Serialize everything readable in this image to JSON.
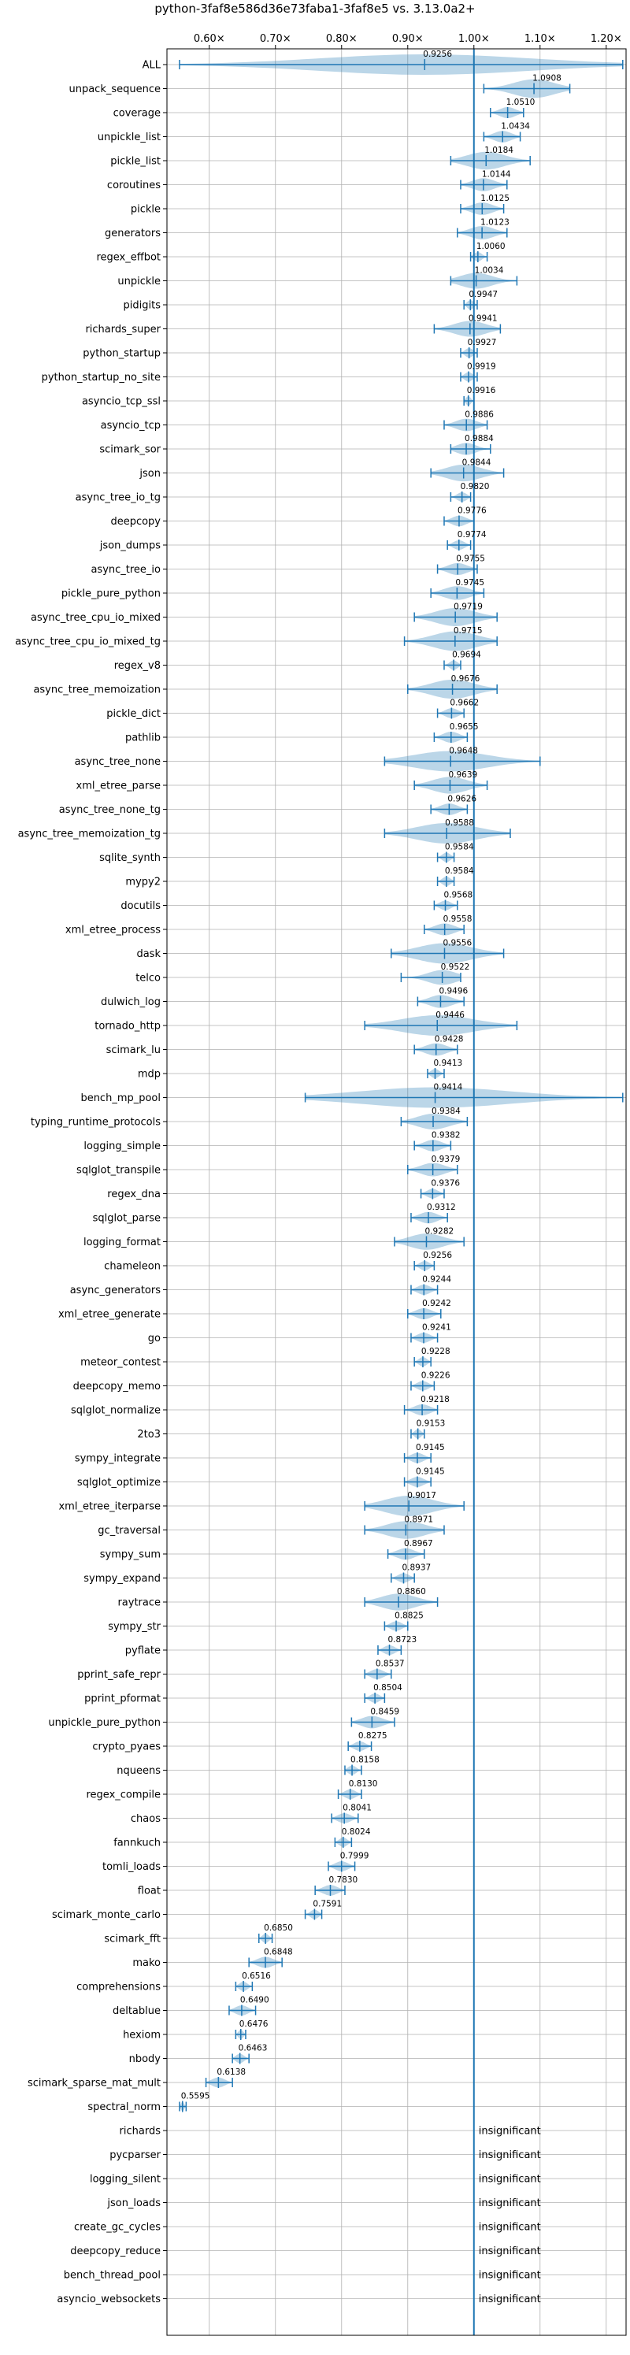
{
  "chart_data": {
    "type": "violin",
    "title": "python-3faf8e586d36e73faba1-3faf8e5 vs. 3.13.0a2+",
    "xlabel": "",
    "ylabel": "",
    "x_ticks": [
      0.6,
      0.7,
      0.8,
      0.9,
      1.0,
      1.1,
      1.2
    ],
    "x_tick_labels": [
      "0.60×",
      "0.70×",
      "0.80×",
      "0.90×",
      "1.00×",
      "1.10×",
      "1.20×"
    ],
    "xlim": [
      0.536,
      1.23
    ],
    "reference_line": 1.0,
    "grid": true,
    "significant": [
      {
        "name": "ALL",
        "value": 0.9256,
        "label": "0.9256",
        "min": 0.555,
        "max": 1.225
      },
      {
        "name": "unpack_sequence",
        "value": 1.0908,
        "label": "1.0908",
        "min": 1.015,
        "max": 1.145
      },
      {
        "name": "coverage",
        "value": 1.051,
        "label": "1.0510",
        "min": 1.025,
        "max": 1.075
      },
      {
        "name": "unpickle_list",
        "value": 1.0434,
        "label": "1.0434",
        "min": 1.015,
        "max": 1.07
      },
      {
        "name": "pickle_list",
        "value": 1.0184,
        "label": "1.0184",
        "min": 0.965,
        "max": 1.085
      },
      {
        "name": "coroutines",
        "value": 1.0144,
        "label": "1.0144",
        "min": 0.98,
        "max": 1.05
      },
      {
        "name": "pickle",
        "value": 1.0125,
        "label": "1.0125",
        "min": 0.98,
        "max": 1.045
      },
      {
        "name": "generators",
        "value": 1.0123,
        "label": "1.0123",
        "min": 0.975,
        "max": 1.05
      },
      {
        "name": "regex_effbot",
        "value": 1.006,
        "label": "1.0060",
        "min": 0.995,
        "max": 1.02
      },
      {
        "name": "unpickle",
        "value": 1.0034,
        "label": "1.0034",
        "min": 0.965,
        "max": 1.065
      },
      {
        "name": "pidigits",
        "value": 0.9947,
        "label": "0.9947",
        "min": 0.985,
        "max": 1.005
      },
      {
        "name": "richards_super",
        "value": 0.9941,
        "label": "0.9941",
        "min": 0.94,
        "max": 1.04
      },
      {
        "name": "python_startup",
        "value": 0.9927,
        "label": "0.9927",
        "min": 0.98,
        "max": 1.005
      },
      {
        "name": "python_startup_no_site",
        "value": 0.9919,
        "label": "0.9919",
        "min": 0.98,
        "max": 1.005
      },
      {
        "name": "asyncio_tcp_ssl",
        "value": 0.9916,
        "label": "0.9916",
        "min": 0.985,
        "max": 1.0
      },
      {
        "name": "asyncio_tcp",
        "value": 0.9886,
        "label": "0.9886",
        "min": 0.955,
        "max": 1.02
      },
      {
        "name": "scimark_sor",
        "value": 0.9884,
        "label": "0.9884",
        "min": 0.965,
        "max": 1.025
      },
      {
        "name": "json",
        "value": 0.9844,
        "label": "0.9844",
        "min": 0.935,
        "max": 1.045
      },
      {
        "name": "async_tree_io_tg",
        "value": 0.982,
        "label": "0.9820",
        "min": 0.965,
        "max": 0.995
      },
      {
        "name": "deepcopy",
        "value": 0.9776,
        "label": "0.9776",
        "min": 0.955,
        "max": 1.0
      },
      {
        "name": "json_dumps",
        "value": 0.9774,
        "label": "0.9774",
        "min": 0.96,
        "max": 0.995
      },
      {
        "name": "async_tree_io",
        "value": 0.9755,
        "label": "0.9755",
        "min": 0.945,
        "max": 1.005
      },
      {
        "name": "pickle_pure_python",
        "value": 0.9745,
        "label": "0.9745",
        "min": 0.935,
        "max": 1.015
      },
      {
        "name": "async_tree_cpu_io_mixed",
        "value": 0.9719,
        "label": "0.9719",
        "min": 0.91,
        "max": 1.035
      },
      {
        "name": "async_tree_cpu_io_mixed_tg",
        "value": 0.9715,
        "label": "0.9715",
        "min": 0.895,
        "max": 1.035
      },
      {
        "name": "regex_v8",
        "value": 0.9694,
        "label": "0.9694",
        "min": 0.955,
        "max": 0.98
      },
      {
        "name": "async_tree_memoization",
        "value": 0.9676,
        "label": "0.9676",
        "min": 0.9,
        "max": 1.035
      },
      {
        "name": "pickle_dict",
        "value": 0.9662,
        "label": "0.9662",
        "min": 0.945,
        "max": 0.985
      },
      {
        "name": "pathlib",
        "value": 0.9655,
        "label": "0.9655",
        "min": 0.94,
        "max": 0.99
      },
      {
        "name": "async_tree_none",
        "value": 0.9648,
        "label": "0.9648",
        "min": 0.865,
        "max": 1.1
      },
      {
        "name": "xml_etree_parse",
        "value": 0.9639,
        "label": "0.9639",
        "min": 0.91,
        "max": 1.02
      },
      {
        "name": "async_tree_none_tg",
        "value": 0.9626,
        "label": "0.9626",
        "min": 0.935,
        "max": 0.99
      },
      {
        "name": "async_tree_memoization_tg",
        "value": 0.9588,
        "label": "0.9588",
        "min": 0.865,
        "max": 1.055
      },
      {
        "name": "sqlite_synth",
        "value": 0.9584,
        "label": "0.9584",
        "min": 0.945,
        "max": 0.97
      },
      {
        "name": "mypy2",
        "value": 0.9584,
        "label": "0.9584",
        "min": 0.945,
        "max": 0.97
      },
      {
        "name": "docutils",
        "value": 0.9568,
        "label": "0.9568",
        "min": 0.94,
        "max": 0.975
      },
      {
        "name": "xml_etree_process",
        "value": 0.9558,
        "label": "0.9558",
        "min": 0.925,
        "max": 0.985
      },
      {
        "name": "dask",
        "value": 0.9556,
        "label": "0.9556",
        "min": 0.875,
        "max": 1.045
      },
      {
        "name": "telco",
        "value": 0.9522,
        "label": "0.9522",
        "min": 0.89,
        "max": 0.98
      },
      {
        "name": "dulwich_log",
        "value": 0.9496,
        "label": "0.9496",
        "min": 0.915,
        "max": 0.985
      },
      {
        "name": "tornado_http",
        "value": 0.9446,
        "label": "0.9446",
        "min": 0.835,
        "max": 1.065
      },
      {
        "name": "scimark_lu",
        "value": 0.9428,
        "label": "0.9428",
        "min": 0.91,
        "max": 0.975
      },
      {
        "name": "mdp",
        "value": 0.9413,
        "label": "0.9413",
        "min": 0.93,
        "max": 0.955
      },
      {
        "name": "bench_mp_pool",
        "value": 0.9414,
        "label": "0.9414",
        "min": 0.745,
        "max": 1.225
      },
      {
        "name": "typing_runtime_protocols",
        "value": 0.9384,
        "label": "0.9384",
        "min": 0.89,
        "max": 0.99
      },
      {
        "name": "logging_simple",
        "value": 0.9382,
        "label": "0.9382",
        "min": 0.91,
        "max": 0.965
      },
      {
        "name": "sqlglot_transpile",
        "value": 0.9379,
        "label": "0.9379",
        "min": 0.9,
        "max": 0.975
      },
      {
        "name": "regex_dna",
        "value": 0.9376,
        "label": "0.9376",
        "min": 0.92,
        "max": 0.955
      },
      {
        "name": "sqlglot_parse",
        "value": 0.9312,
        "label": "0.9312",
        "min": 0.905,
        "max": 0.96
      },
      {
        "name": "logging_format",
        "value": 0.9282,
        "label": "0.9282",
        "min": 0.88,
        "max": 0.985
      },
      {
        "name": "chameleon",
        "value": 0.9256,
        "label": "0.9256",
        "min": 0.91,
        "max": 0.94
      },
      {
        "name": "async_generators",
        "value": 0.9244,
        "label": "0.9244",
        "min": 0.905,
        "max": 0.945
      },
      {
        "name": "xml_etree_generate",
        "value": 0.9242,
        "label": "0.9242",
        "min": 0.9,
        "max": 0.95
      },
      {
        "name": "go",
        "value": 0.9241,
        "label": "0.9241",
        "min": 0.905,
        "max": 0.945
      },
      {
        "name": "meteor_contest",
        "value": 0.9228,
        "label": "0.9228",
        "min": 0.91,
        "max": 0.935
      },
      {
        "name": "deepcopy_memo",
        "value": 0.9226,
        "label": "0.9226",
        "min": 0.905,
        "max": 0.94
      },
      {
        "name": "sqlglot_normalize",
        "value": 0.9218,
        "label": "0.9218",
        "min": 0.895,
        "max": 0.945
      },
      {
        "name": "2to3",
        "value": 0.9153,
        "label": "0.9153",
        "min": 0.905,
        "max": 0.925
      },
      {
        "name": "sympy_integrate",
        "value": 0.9145,
        "label": "0.9145",
        "min": 0.895,
        "max": 0.935
      },
      {
        "name": "sqlglot_optimize",
        "value": 0.9145,
        "label": "0.9145",
        "min": 0.895,
        "max": 0.935
      },
      {
        "name": "xml_etree_iterparse",
        "value": 0.9017,
        "label": "0.9017",
        "min": 0.835,
        "max": 0.985
      },
      {
        "name": "gc_traversal",
        "value": 0.8971,
        "label": "0.8971",
        "min": 0.835,
        "max": 0.955
      },
      {
        "name": "sympy_sum",
        "value": 0.8967,
        "label": "0.8967",
        "min": 0.87,
        "max": 0.925
      },
      {
        "name": "sympy_expand",
        "value": 0.8937,
        "label": "0.8937",
        "min": 0.875,
        "max": 0.91
      },
      {
        "name": "raytrace",
        "value": 0.886,
        "label": "0.8860",
        "min": 0.835,
        "max": 0.945
      },
      {
        "name": "sympy_str",
        "value": 0.8825,
        "label": "0.8825",
        "min": 0.865,
        "max": 0.9
      },
      {
        "name": "pyflate",
        "value": 0.8723,
        "label": "0.8723",
        "min": 0.855,
        "max": 0.89
      },
      {
        "name": "pprint_safe_repr",
        "value": 0.8537,
        "label": "0.8537",
        "min": 0.835,
        "max": 0.875
      },
      {
        "name": "pprint_pformat",
        "value": 0.8504,
        "label": "0.8504",
        "min": 0.835,
        "max": 0.865
      },
      {
        "name": "unpickle_pure_python",
        "value": 0.8459,
        "label": "0.8459",
        "min": 0.815,
        "max": 0.88
      },
      {
        "name": "crypto_pyaes",
        "value": 0.8275,
        "label": "0.8275",
        "min": 0.81,
        "max": 0.845
      },
      {
        "name": "nqueens",
        "value": 0.8158,
        "label": "0.8158",
        "min": 0.805,
        "max": 0.83
      },
      {
        "name": "regex_compile",
        "value": 0.813,
        "label": "0.8130",
        "min": 0.795,
        "max": 0.83
      },
      {
        "name": "chaos",
        "value": 0.8041,
        "label": "0.8041",
        "min": 0.785,
        "max": 0.825
      },
      {
        "name": "fannkuch",
        "value": 0.8024,
        "label": "0.8024",
        "min": 0.79,
        "max": 0.815
      },
      {
        "name": "tomli_loads",
        "value": 0.7999,
        "label": "0.7999",
        "min": 0.78,
        "max": 0.82
      },
      {
        "name": "float",
        "value": 0.783,
        "label": "0.7830",
        "min": 0.76,
        "max": 0.805
      },
      {
        "name": "scimark_monte_carlo",
        "value": 0.7591,
        "label": "0.7591",
        "min": 0.745,
        "max": 0.77
      },
      {
        "name": "scimark_fft",
        "value": 0.685,
        "label": "0.6850",
        "min": 0.675,
        "max": 0.695
      },
      {
        "name": "mako",
        "value": 0.6848,
        "label": "0.6848",
        "min": 0.66,
        "max": 0.71
      },
      {
        "name": "comprehensions",
        "value": 0.6516,
        "label": "0.6516",
        "min": 0.64,
        "max": 0.665
      },
      {
        "name": "deltablue",
        "value": 0.649,
        "label": "0.6490",
        "min": 0.63,
        "max": 0.67
      },
      {
        "name": "hexiom",
        "value": 0.6476,
        "label": "0.6476",
        "min": 0.64,
        "max": 0.655
      },
      {
        "name": "nbody",
        "value": 0.6463,
        "label": "0.6463",
        "min": 0.635,
        "max": 0.66
      },
      {
        "name": "scimark_sparse_mat_mult",
        "value": 0.6138,
        "label": "0.6138",
        "min": 0.595,
        "max": 0.635
      },
      {
        "name": "spectral_norm",
        "value": 0.5595,
        "label": "0.5595",
        "min": 0.555,
        "max": 0.565
      }
    ],
    "insignificant": {
      "label": "insignificant",
      "names": [
        "richards",
        "pycparser",
        "logging_silent",
        "json_loads",
        "create_gc_cycles",
        "deepcopy_reduce",
        "bench_thread_pool",
        "asyncio_websockets"
      ]
    },
    "colors": {
      "violin": "#1f77b4",
      "reference": "#1f77b4",
      "grid": "#b0b0b0"
    }
  }
}
